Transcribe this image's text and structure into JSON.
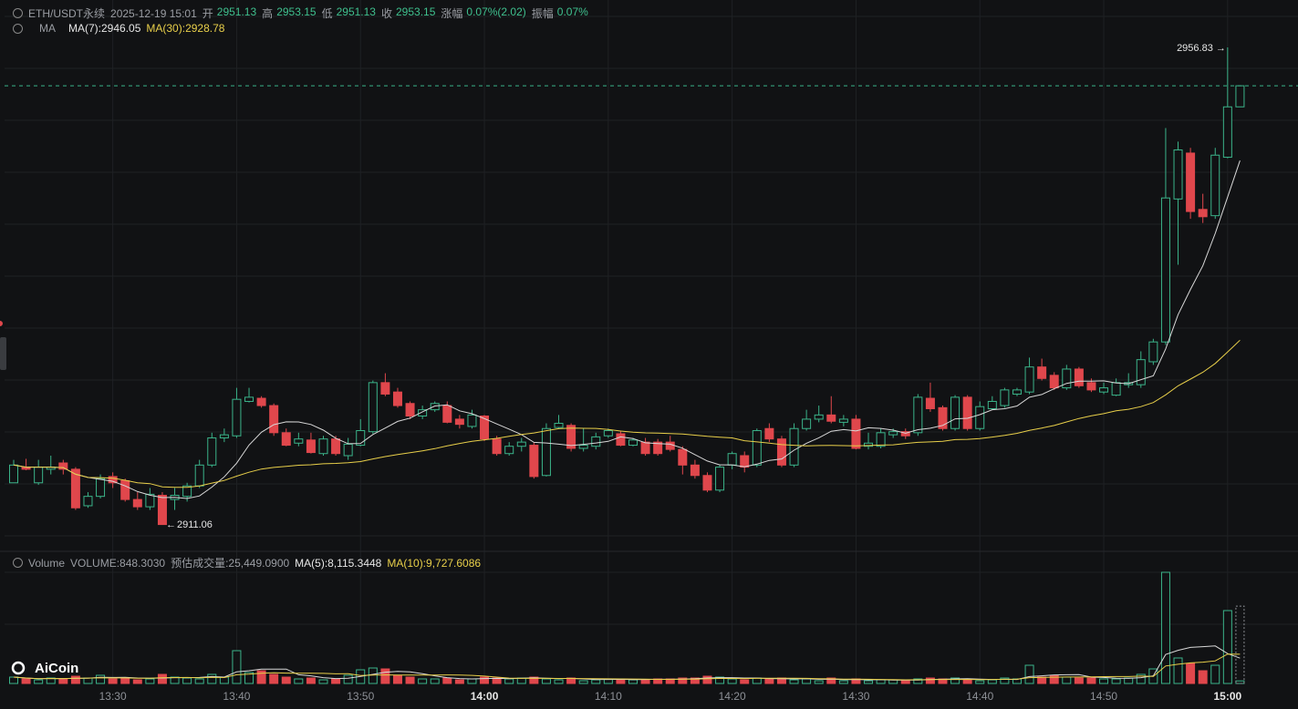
{
  "header": {
    "symbol": "ETH/USDT永续",
    "time": "2025-12-19 15:01",
    "fields": [
      {
        "label": "开",
        "value": "2951.13"
      },
      {
        "label": "高",
        "value": "2953.15"
      },
      {
        "label": "低",
        "value": "2951.13"
      },
      {
        "label": "收",
        "value": "2953.15"
      },
      {
        "label": "涨幅",
        "value": "0.07%(2.02)"
      },
      {
        "label": "振幅",
        "value": "0.07%"
      }
    ]
  },
  "ma_legend": {
    "title": "MA",
    "items": [
      "MA(7):2946.05",
      "MA(30):2928.78"
    ]
  },
  "volume_legend": {
    "title": "Volume",
    "items": [
      "VOLUME:848.3030",
      "预估成交量:25,449.0900",
      "MA(5):8,115.3448",
      "MA(10):9,727.6086"
    ]
  },
  "logo": "AiCoin",
  "chart_data": {
    "type": "candlestick",
    "categories": [
      null,
      null,
      null,
      null,
      null,
      null,
      null,
      null,
      "13:30",
      null,
      null,
      null,
      null,
      null,
      null,
      null,
      null,
      null,
      "13:40",
      null,
      null,
      null,
      null,
      null,
      null,
      null,
      null,
      null,
      "13:50",
      null,
      null,
      null,
      null,
      null,
      null,
      null,
      null,
      null,
      "14:00",
      null,
      null,
      null,
      null,
      null,
      null,
      null,
      null,
      null,
      "14:10",
      null,
      null,
      null,
      null,
      null,
      null,
      null,
      null,
      null,
      "14:20",
      null,
      null,
      null,
      null,
      null,
      null,
      null,
      null,
      null,
      "14:30",
      null,
      null,
      null,
      null,
      null,
      null,
      null,
      null,
      null,
      "14:40",
      null,
      null,
      null,
      null,
      null,
      null,
      null,
      null,
      null,
      "14:50",
      null,
      null,
      null,
      null,
      null,
      null,
      null,
      null,
      null,
      "15:00",
      null
    ],
    "open": [
      2915.1,
      2916.6,
      2915.1,
      2916.4,
      2917.0,
      2916.4,
      2912.9,
      2913.8,
      2915.7,
      2915.3,
      2913.5,
      2912.8,
      2913.9,
      2913.5,
      2913.8,
      2914.8,
      2916.8,
      2919.4,
      2919.6,
      2922.9,
      2923.2,
      2922.5,
      2919.9,
      2918.9,
      2919.2,
      2917.9,
      2919.3,
      2917.7,
      2918.7,
      2920.0,
      2924.7,
      2923.8,
      2922.7,
      2921.5,
      2922.1,
      2922.5,
      2921.2,
      2920.5,
      2921.5,
      2919.3,
      2917.9,
      2918.6,
      2918.7,
      2915.8,
      2920.4,
      2920.6,
      2918.4,
      2918.6,
      2919.6,
      2919.8,
      2918.7,
      2919.0,
      2919.0,
      2919.0,
      2918.3,
      2916.8,
      2915.8,
      2914.4,
      2916.8,
      2917.7,
      2916.8,
      2920.3,
      2919.3,
      2916.8,
      2920.3,
      2921.2,
      2921.6,
      2920.9,
      2921.2,
      2918.6,
      2918.6,
      2919.7,
      2920.0,
      2919.9,
      2923.2,
      2922.3,
      2920.3,
      2923.3,
      2920.3,
      2922.2,
      2922.5,
      2923.6,
      2923.8,
      2926.2,
      2925.4,
      2924.2,
      2926.0,
      2924.7,
      2923.8,
      2923.5,
      2924.5,
      2924.5,
      2926.7,
      2928.6,
      2942.3,
      2946.7,
      2941.3,
      2940.7,
      2946.3,
      2951.13
    ],
    "high": [
      2917.3,
      2917.4,
      2917.3,
      2917.7,
      2917.3,
      2916.6,
      2914.2,
      2915.9,
      2916.1,
      2915.5,
      2914.2,
      2914.6,
      2914.2,
      2914.6,
      2915.1,
      2917.3,
      2919.9,
      2920.3,
      2924.2,
      2924.2,
      2923.4,
      2922.7,
      2920.3,
      2919.9,
      2919.9,
      2919.6,
      2919.6,
      2919.4,
      2921.2,
      2924.9,
      2925.6,
      2924.2,
      2922.9,
      2922.5,
      2922.9,
      2922.9,
      2921.6,
      2922.1,
      2921.6,
      2919.6,
      2919.0,
      2919.4,
      2919.0,
      2920.8,
      2921.6,
      2920.8,
      2920.3,
      2919.9,
      2920.3,
      2920.1,
      2919.4,
      2919.4,
      2919.3,
      2919.6,
      2918.6,
      2917.3,
      2916.1,
      2916.8,
      2918.1,
      2918.1,
      2920.3,
      2920.8,
      2919.6,
      2920.8,
      2922.1,
      2922.5,
      2923.4,
      2921.6,
      2921.6,
      2919.9,
      2920.3,
      2920.3,
      2920.3,
      2923.6,
      2924.7,
      2922.5,
      2923.5,
      2923.5,
      2922.9,
      2923.4,
      2924.2,
      2924.2,
      2927.1,
      2927.0,
      2925.7,
      2926.4,
      2926.2,
      2925.1,
      2924.7,
      2925.1,
      2925.6,
      2927.7,
      2928.9,
      2949.1,
      2947.8,
      2947.2,
      2942.8,
      2947.2,
      2956.83,
      2953.15
    ],
    "low": [
      2915.1,
      2916.3,
      2914.9,
      2915.9,
      2915.9,
      2912.5,
      2912.7,
      2913.6,
      2914.6,
      2913.3,
      2912.5,
      2912.5,
      2911.06,
      2912.5,
      2913.3,
      2914.6,
      2916.6,
      2919.0,
      2919.4,
      2922.8,
      2922.3,
      2919.6,
      2918.6,
      2918.6,
      2917.9,
      2917.7,
      2917.7,
      2917.3,
      2918.6,
      2919.8,
      2923.4,
      2922.3,
      2921.2,
      2921.2,
      2921.9,
      2920.8,
      2920.3,
      2920.3,
      2919.1,
      2917.7,
      2917.7,
      2918.1,
      2915.5,
      2915.7,
      2920.3,
      2918.1,
      2918.1,
      2918.3,
      2919.4,
      2918.6,
      2918.6,
      2917.7,
      2917.7,
      2918.1,
      2915.9,
      2915.5,
      2914.2,
      2914.2,
      2916.4,
      2916.1,
      2916.6,
      2919.0,
      2916.6,
      2916.6,
      2920.1,
      2920.9,
      2920.8,
      2920.5,
      2918.3,
      2918.3,
      2918.4,
      2919.4,
      2919.3,
      2919.6,
      2921.9,
      2920.1,
      2920.1,
      2920.1,
      2920.1,
      2922.1,
      2922.3,
      2923.4,
      2923.6,
      2924.9,
      2924.0,
      2924.0,
      2924.2,
      2923.8,
      2923.6,
      2923.4,
      2924.2,
      2924.2,
      2926.4,
      2928.3,
      2936.0,
      2940.4,
      2940.0,
      2940.4,
      2946.2,
      2951.13
    ],
    "close": [
      2916.8,
      2916.4,
      2916.6,
      2916.6,
      2916.4,
      2912.7,
      2913.8,
      2915.5,
      2915.1,
      2913.5,
      2912.8,
      2914.0,
      2911.1,
      2913.9,
      2914.8,
      2916.8,
      2919.4,
      2919.7,
      2923.1,
      2923.3,
      2922.5,
      2919.9,
      2918.7,
      2919.3,
      2918.0,
      2919.3,
      2917.9,
      2918.8,
      2920.1,
      2924.7,
      2923.6,
      2922.5,
      2921.5,
      2922.1,
      2922.7,
      2920.9,
      2920.7,
      2921.6,
      2919.3,
      2917.9,
      2918.6,
      2919.0,
      2915.7,
      2920.3,
      2920.8,
      2918.4,
      2918.7,
      2919.5,
      2920.1,
      2918.7,
      2919.2,
      2917.9,
      2917.9,
      2918.3,
      2916.8,
      2915.8,
      2914.4,
      2916.6,
      2917.9,
      2916.6,
      2920.1,
      2919.3,
      2916.8,
      2920.3,
      2921.2,
      2921.6,
      2921.0,
      2921.2,
      2918.4,
      2918.9,
      2919.9,
      2920.0,
      2919.6,
      2923.3,
      2922.2,
      2920.3,
      2923.3,
      2920.3,
      2922.4,
      2922.9,
      2924.0,
      2924.0,
      2926.2,
      2925.1,
      2924.2,
      2926.0,
      2924.4,
      2924.0,
      2924.2,
      2924.7,
      2924.7,
      2926.9,
      2928.6,
      2942.4,
      2947.0,
      2941.1,
      2940.6,
      2946.5,
      2951.13,
      2953.15
    ],
    "volume": [
      2100,
      1500,
      1200,
      1800,
      1500,
      2400,
      1800,
      2700,
      1500,
      1800,
      1200,
      1500,
      3000,
      2100,
      1800,
      1500,
      3000,
      2100,
      10800,
      3600,
      4200,
      3000,
      2100,
      1500,
      1800,
      1200,
      1500,
      2700,
      4500,
      5100,
      4800,
      2700,
      2100,
      1500,
      1500,
      1800,
      1200,
      1500,
      2100,
      1800,
      1500,
      1800,
      2100,
      1500,
      1200,
      1800,
      900,
      1200,
      1500,
      1500,
      1200,
      1200,
      1500,
      1500,
      1800,
      1800,
      2400,
      2100,
      1500,
      1200,
      1800,
      1500,
      1800,
      1200,
      1500,
      900,
      1800,
      900,
      1500,
      900,
      1200,
      1200,
      900,
      1500,
      1800,
      1500,
      1800,
      1200,
      900,
      1200,
      1800,
      1500,
      6000,
      2100,
      2700,
      2100,
      1800,
      1800,
      1500,
      1500,
      1800,
      3000,
      4800,
      36600,
      8400,
      6600,
      4200,
      6000,
      24000,
      848.303
    ],
    "volume_estimate": 25449.09,
    "ylim": [
      2908.53,
      2961.37
    ],
    "volume_ylim": [
      0,
      39000
    ],
    "max_label": 2956.83,
    "min_label": 2911.06,
    "up_color": "#3bb48a",
    "down_color": "#e0474c",
    "ma_periods": [
      7,
      30
    ],
    "ma_colors": [
      "#d8d8d8",
      "#e8cf4a"
    ],
    "volume_ma_periods": [
      5,
      10
    ],
    "volume_ma_colors": [
      "#d8d8d8",
      "#e8cf4a"
    ],
    "grid": true
  }
}
